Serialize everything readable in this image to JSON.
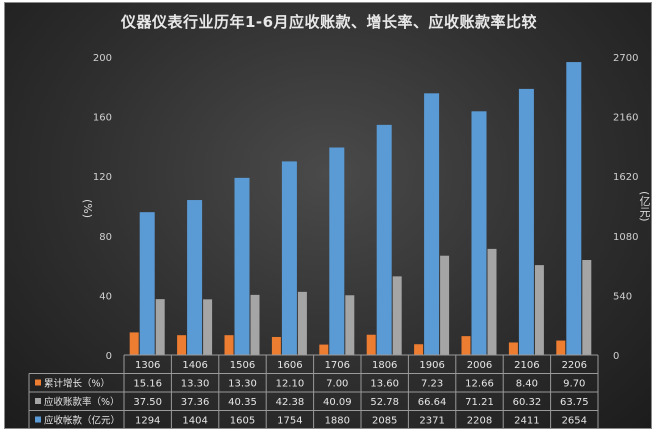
{
  "chart_data": {
    "type": "bar",
    "title": "仪器仪表行业历年1-6月应收账款、增长率、应收账款率比较",
    "categories": [
      "1306",
      "1406",
      "1506",
      "1606",
      "1706",
      "1806",
      "1906",
      "2006",
      "2106",
      "2206"
    ],
    "ylabel_left": "(%)",
    "ylabel_right": "(亿元)",
    "left_axis": {
      "ylim": [
        0,
        200
      ],
      "ticks": [
        "0",
        "40",
        "80",
        "120",
        "160",
        "200"
      ]
    },
    "right_axis": {
      "ylim": [
        0,
        2700
      ],
      "ticks": [
        "0",
        "540",
        "1080",
        "1620",
        "2160",
        "2700"
      ]
    },
    "series": [
      {
        "name": "累计增长（%）",
        "axis": "left",
        "color": "#ed7d31",
        "values": [
          15.16,
          13.3,
          13.3,
          12.1,
          7.0,
          13.6,
          7.23,
          12.66,
          8.4,
          9.7
        ],
        "labels": [
          "15.16",
          "13.30",
          "13.30",
          "12.10",
          "7.00",
          "13.60",
          "7.23",
          "12.66",
          "8.40",
          "9.70"
        ]
      },
      {
        "name": "应收账款率（%）",
        "axis": "left",
        "color": "#a5a5a5",
        "values": [
          37.5,
          37.36,
          40.35,
          42.38,
          40.09,
          52.78,
          66.64,
          71.21,
          60.32,
          63.75
        ],
        "labels": [
          "37.50",
          "37.36",
          "40.35",
          "42.38",
          "40.09",
          "52.78",
          "66.64",
          "71.21",
          "60.32",
          "63.75"
        ]
      },
      {
        "name": "应收帐款（亿元）",
        "axis": "right",
        "color": "#5b9bd5",
        "values": [
          1294,
          1404,
          1605,
          1754,
          1880,
          2085,
          2371,
          2208,
          2411,
          2654
        ],
        "labels": [
          "1294",
          "1404",
          "1605",
          "1754",
          "1880",
          "2085",
          "2371",
          "2208",
          "2411",
          "2654"
        ]
      }
    ],
    "grid": false,
    "legend": "data-table"
  }
}
